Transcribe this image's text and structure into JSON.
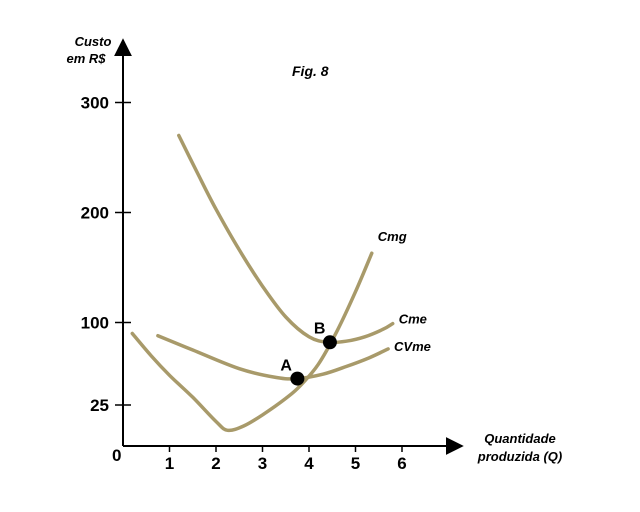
{
  "chart_data": {
    "type": "line",
    "title": "Fig. 8",
    "ylabel_lines": [
      "Custo",
      "em R$"
    ],
    "xlabel_lines": [
      "Quantidade",
      "produzida (Q)"
    ],
    "origin_label": "0",
    "xlim": [
      0,
      7
    ],
    "ylim": [
      -10,
      330
    ],
    "x_ticks": [
      1,
      2,
      3,
      4,
      5,
      6
    ],
    "x_tick_labels": [
      "1",
      "2",
      "3",
      "4",
      "5",
      "6"
    ],
    "y_ticks": [
      25,
      100,
      200,
      300
    ],
    "y_tick_labels": [
      "25",
      "100",
      "200",
      "300"
    ],
    "curve_color": "#A89A6A",
    "series": [
      {
        "name": "Cmg",
        "x": [
          0.2,
          0.6,
          1.0,
          1.5,
          2.0,
          2.25,
          2.6,
          3.0,
          3.5,
          3.8,
          4.2,
          4.6,
          5.0,
          5.35
        ],
        "y": [
          90,
          70,
          52,
          32,
          10,
          2,
          6,
          16,
          31,
          42,
          62,
          92,
          128,
          163
        ]
      },
      {
        "name": "Cme",
        "x": [
          1.2,
          1.6,
          2.0,
          2.5,
          3.0,
          3.5,
          4.0,
          4.4,
          4.8,
          5.2,
          5.6,
          5.8
        ],
        "y": [
          270,
          236,
          203,
          166,
          133,
          105,
          87,
          82,
          83,
          87,
          94,
          99
        ]
      },
      {
        "name": "CVme",
        "x": [
          0.75,
          1.5,
          2.5,
          3.3,
          3.75,
          4.3,
          4.8,
          5.3,
          5.7
        ],
        "y": [
          88,
          75,
          58,
          50,
          49,
          53,
          60,
          68,
          76
        ]
      }
    ],
    "points": [
      {
        "label": "A",
        "x": 3.75,
        "y": 49
      },
      {
        "label": "B",
        "x": 4.45,
        "y": 82
      }
    ]
  }
}
